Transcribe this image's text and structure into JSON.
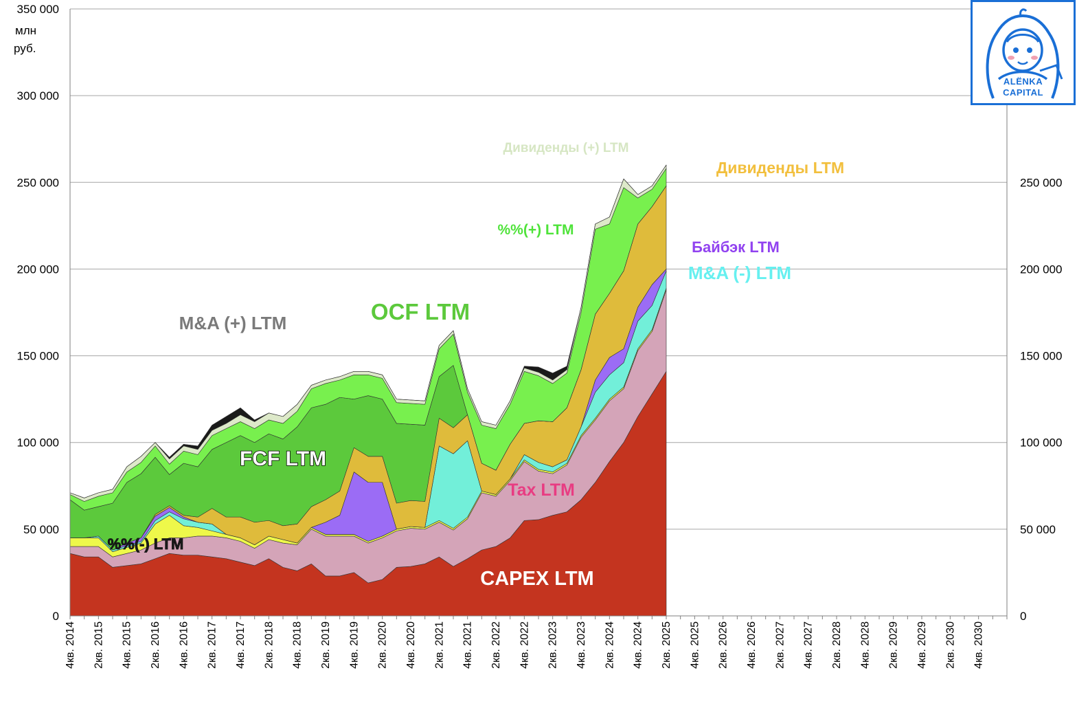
{
  "chart_data": {
    "type": "area",
    "stacked": true,
    "unit_label_line1": "млн",
    "unit_label_line2": "руб.",
    "ylim": [
      0,
      350000
    ],
    "y_ticks_left": [
      "0",
      "50 000",
      "100 000",
      "150 000",
      "200 000",
      "250 000",
      "300 000",
      "350 000"
    ],
    "y_ticks_right": [
      "0",
      "50 000",
      "100 000",
      "150 000",
      "200 000",
      "250 000"
    ],
    "x_labels": [
      "4кв. 2014",
      "2кв. 2015",
      "4кв. 2015",
      "2кв. 2016",
      "4кв. 2016",
      "2кв. 2017",
      "4кв. 2017",
      "2кв. 2018",
      "4кв. 2018",
      "2кв. 2019",
      "4кв. 2019",
      "2кв. 2020",
      "4кв. 2020",
      "2кв. 2021",
      "4кв. 2021",
      "2кв. 2022",
      "4кв. 2022",
      "2кв. 2023",
      "4кв. 2023",
      "2кв. 2024",
      "4кв. 2024",
      "2кв. 2025",
      "4кв. 2025",
      "2кв. 2026",
      "4кв. 2026",
      "2кв. 2027",
      "4кв. 2027",
      "2кв. 2028",
      "4кв. 2028",
      "2кв. 2029",
      "4кв. 2029",
      "2кв. 2030",
      "4кв. 2030"
    ],
    "quarters_with_data": 43,
    "total_quarters": 66,
    "series": [
      {
        "name": "CAPEX LTM",
        "color": "#c4341f",
        "values": [
          36000,
          34000,
          34000,
          28000,
          29000,
          30000,
          33000,
          36000,
          35000,
          35000,
          34000,
          33000,
          31000,
          29000,
          33000,
          28000,
          26000,
          30000,
          23000,
          23000,
          25000,
          19000,
          21000,
          28000,
          28500,
          30000,
          34000,
          28500,
          33000,
          38000,
          40000,
          45000,
          55000,
          55500,
          58000,
          60000,
          67000,
          77000,
          89000,
          100000,
          115000,
          128000,
          141000
        ]
      },
      {
        "name": "Tax LTM",
        "color": "#d4a4b8",
        "values": [
          4000,
          6000,
          6000,
          6000,
          7000,
          8000,
          9000,
          9000,
          10000,
          11000,
          12000,
          12000,
          12000,
          10000,
          11000,
          14000,
          15000,
          20000,
          23000,
          23000,
          21000,
          23000,
          24000,
          21000,
          22000,
          20000,
          20000,
          21000,
          23000,
          33000,
          29000,
          33000,
          34000,
          28000,
          24000,
          27000,
          36000,
          36000,
          35000,
          31000,
          38000,
          36000,
          47000
        ]
      },
      {
        "name": "%%(-) LTM",
        "color": "#eef84a",
        "values": [
          5000,
          5000,
          5000,
          3000,
          3500,
          4000,
          11000,
          13000,
          7000,
          5000,
          3000,
          2000,
          2000,
          2000,
          2000,
          2000,
          1000,
          1000,
          1000,
          1000,
          1000,
          1000,
          1000,
          1000,
          1000,
          1000,
          1000,
          1000,
          1000,
          1000,
          1000,
          1000,
          1000,
          1000,
          1000,
          1000,
          1000,
          1000,
          1000,
          1000,
          1000,
          1000,
          1000
        ]
      },
      {
        "name": "M&A (-) LTM",
        "color": "#72efd9",
        "values": [
          0,
          0,
          1000,
          1000,
          1000,
          1000,
          2000,
          2000,
          4000,
          3000,
          4000,
          0,
          0,
          0,
          0,
          0,
          0,
          0,
          0,
          0,
          0,
          0,
          0,
          0,
          0,
          0,
          43000,
          43000,
          44000,
          0,
          0,
          0,
          3000,
          4000,
          3000,
          2000,
          5000,
          15000,
          14000,
          14000,
          16000,
          14000,
          10000
        ]
      },
      {
        "name": "Байбэк LTM",
        "color": "#9b6cf5",
        "values": [
          0,
          0,
          0,
          0,
          1500,
          2000,
          2500,
          2500,
          1000,
          0,
          0,
          0,
          0,
          0,
          0,
          0,
          0,
          0,
          7000,
          11000,
          36000,
          34000,
          31000,
          0,
          0,
          0,
          0,
          0,
          0,
          0,
          0,
          0,
          0,
          0,
          0,
          0,
          0,
          7000,
          10000,
          8000,
          8000,
          12000,
          1000
        ]
      },
      {
        "name": "Дивиденды LTM",
        "color": "#dfbb3b",
        "values": [
          0,
          0,
          0,
          0,
          0,
          0,
          1000,
          1000,
          1000,
          3000,
          9000,
          10000,
          12000,
          13000,
          9000,
          8000,
          11000,
          12000,
          13000,
          14000,
          14000,
          15000,
          15000,
          15000,
          15000,
          15000,
          16000,
          15000,
          15000,
          16000,
          14000,
          20000,
          18000,
          24000,
          26000,
          30000,
          33000,
          38000,
          37000,
          45000,
          48000,
          45000,
          48000
        ]
      },
      {
        "name": "FCF LTM",
        "color": "#5cc93c",
        "values": [
          22000,
          16000,
          17000,
          27000,
          35000,
          37000,
          33000,
          18000,
          30000,
          29000,
          34000,
          43000,
          47000,
          46000,
          50000,
          50000,
          56000,
          57000,
          55000,
          54000,
          28000,
          35000,
          33000,
          46000,
          44000,
          44000,
          24000,
          36000,
          0,
          0,
          0,
          0,
          0,
          0,
          0,
          0,
          0,
          0,
          0,
          0,
          0,
          0,
          0
        ]
      },
      {
        "name": "OCF LTM",
        "color": "#6de84a",
        "values": [
          0,
          0,
          0,
          0,
          0,
          0,
          0,
          0,
          0,
          0,
          0,
          0,
          0,
          0,
          0,
          0,
          0,
          0,
          0,
          0,
          0,
          0,
          0,
          0,
          0,
          0,
          0,
          0,
          0,
          0,
          0,
          0,
          0,
          0,
          0,
          0,
          0,
          0,
          0,
          0,
          0,
          0,
          0
        ]
      },
      {
        "name": "%%(+) LTM",
        "color": "#78f04e",
        "values": [
          3000,
          5000,
          6000,
          6000,
          6000,
          6500,
          6500,
          6000,
          7000,
          7000,
          8000,
          8000,
          8000,
          8000,
          8000,
          9000,
          9000,
          11000,
          12000,
          10000,
          14000,
          12000,
          12000,
          12000,
          12000,
          12000,
          16000,
          18000,
          13000,
          22000,
          24000,
          23000,
          30000,
          26000,
          22000,
          20000,
          33000,
          49000,
          40000,
          48000,
          15000,
          10000,
          10000
        ]
      },
      {
        "name": "Дивиденды (+) LTM",
        "color": "#dde9c9",
        "values": [
          1000,
          2000,
          2000,
          2000,
          3000,
          3500,
          2000,
          3000,
          3000,
          3000,
          3000,
          3000,
          4000,
          4000,
          4000,
          4000,
          4000,
          2000,
          2000,
          2000,
          2000,
          2000,
          2000,
          2000,
          2000,
          2000,
          2000,
          2000,
          2000,
          2000,
          2000,
          2000,
          2000,
          2000,
          2000,
          2000,
          3000,
          3000,
          4000,
          5000,
          2000,
          2000,
          2000
        ]
      },
      {
        "name": "M&A (+) LTM",
        "color": "#1a1a1a",
        "values": [
          0,
          0,
          0,
          0,
          0,
          0,
          0,
          1000,
          1000,
          2000,
          3000,
          4000,
          4000,
          1000,
          0,
          0,
          0,
          0,
          0,
          0,
          0,
          0,
          0,
          0,
          0,
          0,
          0,
          0,
          0,
          0,
          0,
          0,
          1000,
          3000,
          4000,
          2000,
          0,
          0,
          0,
          0,
          0,
          0,
          0
        ]
      }
    ],
    "annotations": [
      {
        "text": "M&A (+) LTM",
        "color": "#7a7a7a"
      },
      {
        "text": "OCF LTM",
        "color": "#5cc93c"
      },
      {
        "text": "FCF LTM",
        "color": "#ffffff"
      },
      {
        "text": "%%(+) LTM",
        "color": "#4fe33a"
      },
      {
        "text": "Дивиденды (+) LTM",
        "color": "#d6e6c3"
      },
      {
        "text": "Дивиденды LTM",
        "color": "#f2bf3d"
      },
      {
        "text": "Байбэк LTM",
        "color": "#9142f0"
      },
      {
        "text": "M&A (-) LTM",
        "color": "#66f0f0"
      },
      {
        "text": "Tax LTM",
        "color": "#e83c82"
      },
      {
        "text": "%%(-) LTM",
        "color": "#1a1a1a"
      },
      {
        "text": "CAPEX LTM",
        "color": "#ffffff"
      }
    ]
  },
  "logo": {
    "line1": "ALЁNKA",
    "line2": "CAPITAL",
    "color": "#1a6fd6"
  }
}
